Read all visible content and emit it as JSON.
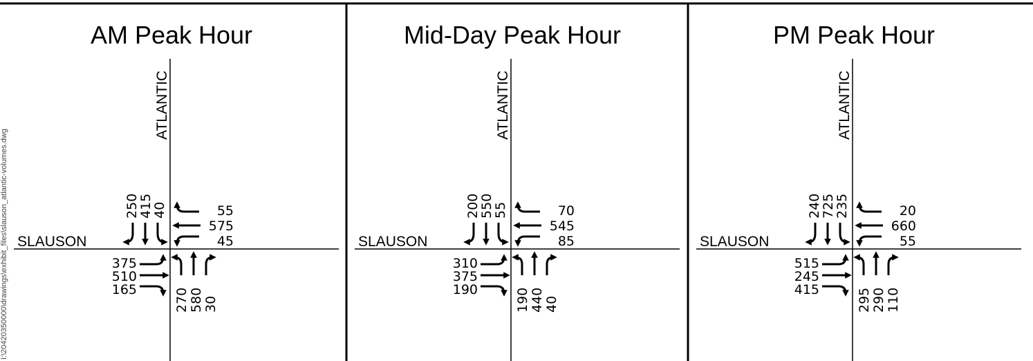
{
  "file_path": "I:\\20420350000\\drawings\\exhibit_files\\slauson_atlantic-volumes.dwg",
  "panels": [
    {
      "title": "AM Peak Hour",
      "north_south_street": "ATLANTIC",
      "east_west_street": "SLAUSON",
      "volumes": {
        "southbound": [
          250,
          415,
          40
        ],
        "westbound": [
          55,
          575,
          45
        ],
        "eastbound": [
          375,
          510,
          165
        ],
        "northbound": [
          270,
          580,
          30
        ]
      }
    },
    {
      "title": "Mid-Day Peak Hour",
      "north_south_street": "ATLANTIC",
      "east_west_street": "SLAUSON",
      "volumes": {
        "southbound": [
          200,
          550,
          55
        ],
        "westbound": [
          70,
          545,
          85
        ],
        "eastbound": [
          310,
          375,
          190
        ],
        "northbound": [
          190,
          440,
          40
        ]
      }
    },
    {
      "title": "PM Peak Hour",
      "north_south_street": "ATLANTIC",
      "east_west_street": "SLAUSON",
      "volumes": {
        "southbound": [
          240,
          725,
          235
        ],
        "westbound": [
          20,
          660,
          55
        ],
        "eastbound": [
          515,
          245,
          415
        ],
        "northbound": [
          295,
          290,
          110
        ]
      }
    }
  ]
}
